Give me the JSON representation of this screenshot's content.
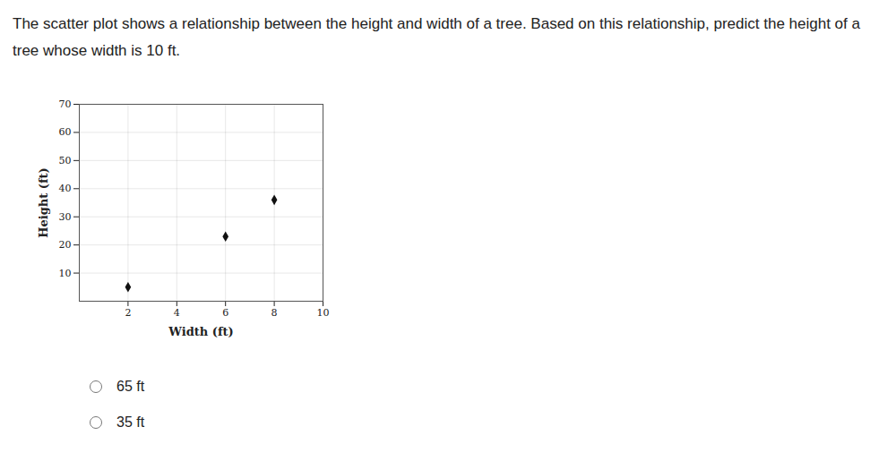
{
  "question": "The scatter plot shows a relationship between the height and width of a tree. Based on this relationship, predict the height of a tree whose width is 10 ft.",
  "choices": [
    "65 ft",
    "35 ft"
  ],
  "chart_data": {
    "type": "scatter",
    "x": [
      2,
      6,
      8
    ],
    "values": [
      5,
      23,
      36
    ],
    "x_label": "Width (ft)",
    "y_label": "Height (ft)",
    "xlim": [
      0,
      10
    ],
    "xticks": [
      2,
      4,
      6,
      8,
      10
    ],
    "ylim": [
      0,
      70
    ],
    "yticks": [
      10,
      20,
      30,
      40,
      50,
      60,
      70
    ],
    "grid": true,
    "color": "#111111",
    "marker": "diamond"
  }
}
